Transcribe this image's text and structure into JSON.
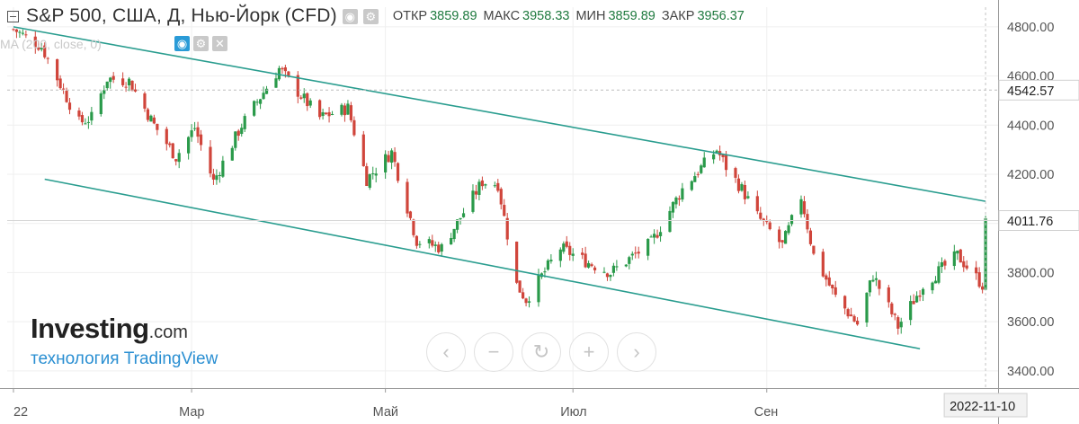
{
  "header": {
    "title": "S&P 500, США, Д, Нью-Йорк (CFD)",
    "open_label": "ОТКР",
    "open_value": "3859.89",
    "high_label": "МАКС",
    "high_value": "3958.33",
    "low_label": "МИН",
    "low_value": "3859.89",
    "close_label": "ЗАКР",
    "close_value": "3956.37"
  },
  "indicator": {
    "label": "MA (200, close, 0)"
  },
  "brand": {
    "logo_main": "Investing",
    "logo_suffix": ".com",
    "powered": "технология TradingView"
  },
  "nav_buttons": [
    {
      "name": "scroll-left",
      "glyph": "‹"
    },
    {
      "name": "zoom-out",
      "glyph": "−"
    },
    {
      "name": "reset",
      "glyph": "↻"
    },
    {
      "name": "zoom-in",
      "glyph": "+"
    },
    {
      "name": "scroll-right",
      "glyph": "›"
    }
  ],
  "colors": {
    "up": "#2a9a4a",
    "down": "#d0453b",
    "channel": "#2a9d8f",
    "grid": "#efefef"
  },
  "chart_data": {
    "type": "candlestick",
    "title": "S&P 500, США, Д, Нью-Йорк (CFD)",
    "y_ticks": [
      3400,
      3600,
      3800,
      4000,
      4200,
      4400,
      4600,
      4800
    ],
    "y_tick_labels": [
      "3400.00",
      "3600.00",
      "3800.00",
      "",
      "4200.00",
      "4400.00",
      "4600.00",
      "4800.00"
    ],
    "ylim": [
      3330,
      4880
    ],
    "xlim": [
      "2022-01-01",
      "2022-11-14"
    ],
    "x_ticks": [
      {
        "date": "2022-01-03",
        "label": "22"
      },
      {
        "date": "2022-03-01",
        "label": "Мар"
      },
      {
        "date": "2022-05-02",
        "label": "Май"
      },
      {
        "date": "2022-07-01",
        "label": "Июл"
      },
      {
        "date": "2022-09-01",
        "label": "Сен"
      }
    ],
    "last_date_label": "2022-11-10",
    "price_markers": [
      {
        "value": 4542.57,
        "label": "4542.57",
        "style": "dashed"
      },
      {
        "value": 4011.76,
        "label": "4011.76",
        "style": "solid"
      }
    ],
    "channel_lines": [
      {
        "from": {
          "date": "2022-01-03",
          "value": 4800
        },
        "to": {
          "date": "2022-11-10",
          "value": 4090
        }
      },
      {
        "from": {
          "date": "2022-01-13",
          "value": 4180
        },
        "to": {
          "date": "2022-10-20",
          "value": 3490
        }
      }
    ],
    "anchors": [
      [
        "2022-01-03",
        4790
      ],
      [
        "2022-01-12",
        4720
      ],
      [
        "2022-01-24",
        4410
      ],
      [
        "2022-01-28",
        4430
      ],
      [
        "2022-02-02",
        4590
      ],
      [
        "2022-02-09",
        4580
      ],
      [
        "2022-02-17",
        4400
      ],
      [
        "2022-02-24",
        4270
      ],
      [
        "2022-03-02",
        4390
      ],
      [
        "2022-03-08",
        4170
      ],
      [
        "2022-03-17",
        4400
      ],
      [
        "2022-03-29",
        4630
      ],
      [
        "2022-04-05",
        4520
      ],
      [
        "2022-04-11",
        4430
      ],
      [
        "2022-04-20",
        4470
      ],
      [
        "2022-04-26",
        4180
      ],
      [
        "2022-05-04",
        4290
      ],
      [
        "2022-05-12",
        3930
      ],
      [
        "2022-05-20",
        3900
      ],
      [
        "2022-06-02",
        4170
      ],
      [
        "2022-06-07",
        4160
      ],
      [
        "2022-06-13",
        3750
      ],
      [
        "2022-06-16",
        3690
      ],
      [
        "2022-06-27",
        3900
      ],
      [
        "2022-07-06",
        3840
      ],
      [
        "2022-07-13",
        3800
      ],
      [
        "2022-07-26",
        3920
      ],
      [
        "2022-08-05",
        4140
      ],
      [
        "2022-08-16",
        4300
      ],
      [
        "2022-08-19",
        4230
      ],
      [
        "2022-08-24",
        4140
      ],
      [
        "2022-08-29",
        4030
      ],
      [
        "2022-09-06",
        3910
      ],
      [
        "2022-09-12",
        4110
      ],
      [
        "2022-09-16",
        3870
      ],
      [
        "2022-09-23",
        3700
      ],
      [
        "2022-09-30",
        3590
      ],
      [
        "2022-10-05",
        3790
      ],
      [
        "2022-10-13",
        3580
      ],
      [
        "2022-10-21",
        3750
      ],
      [
        "2022-11-01",
        3870
      ],
      [
        "2022-11-09",
        3750
      ],
      [
        "2022-11-10",
        4000
      ]
    ]
  }
}
